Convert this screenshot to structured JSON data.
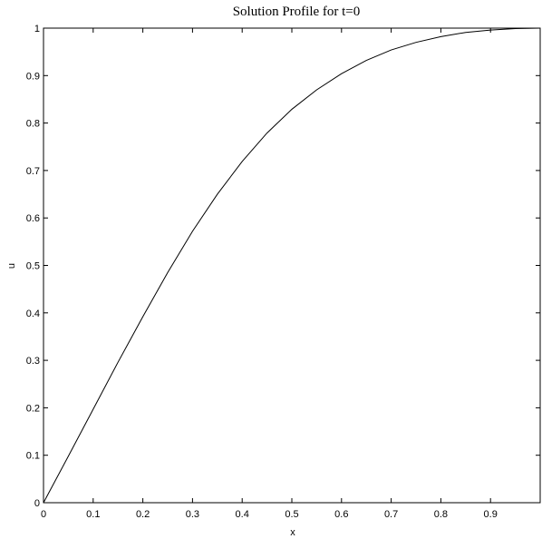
{
  "chart_data": {
    "type": "line",
    "title": "Solution Profile for t=0",
    "xlabel": "x",
    "ylabel": "u",
    "xlim": [
      0,
      1
    ],
    "ylim": [
      0,
      1
    ],
    "x_ticks": [
      "0",
      "0.1",
      "0.2",
      "0.3",
      "0.4",
      "0.5",
      "0.6",
      "0.7",
      "0.8",
      "0.9"
    ],
    "y_ticks": [
      "0",
      "0.1",
      "0.2",
      "0.3",
      "0.4",
      "0.5",
      "0.6",
      "0.7",
      "0.8",
      "0.9",
      "1"
    ],
    "grid": false,
    "series": [
      {
        "color": "#000000",
        "x": [
          0,
          0.05,
          0.1,
          0.15,
          0.2,
          0.25,
          0.3,
          0.35,
          0.4,
          0.45,
          0.5,
          0.55,
          0.6,
          0.65,
          0.7,
          0.75,
          0.8,
          0.85,
          0.9,
          0.95,
          1.0
        ],
        "y": [
          0,
          0.098,
          0.197,
          0.296,
          0.392,
          0.485,
          0.572,
          0.65,
          0.719,
          0.779,
          0.829,
          0.87,
          0.904,
          0.932,
          0.954,
          0.97,
          0.982,
          0.991,
          0.996,
          0.999,
          1.0
        ]
      }
    ]
  }
}
